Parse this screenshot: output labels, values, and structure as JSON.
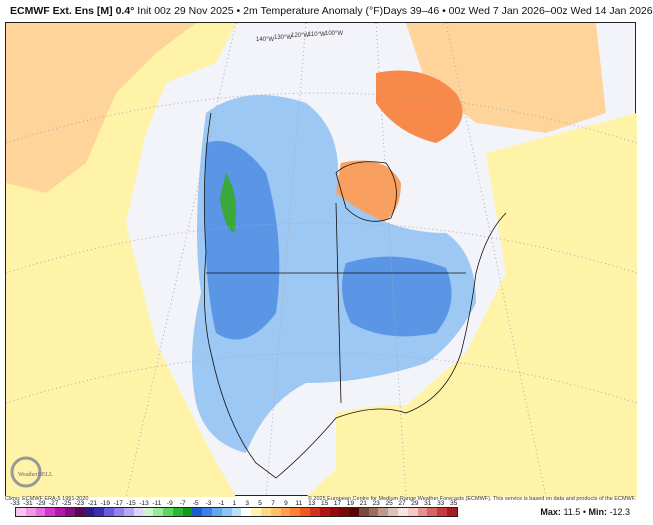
{
  "header": {
    "model": "ECMWF Ext. Ens [M] 0.4°",
    "init": "Init 00z 29 Nov 2025",
    "field": "2m Temperature Anomaly (°F)",
    "period": "Days 39–46 • 00z Wed 7 Jan 2026–00z Wed 14 Jan 2026"
  },
  "map": {
    "meridian_labels": [
      "140°W",
      "130°W",
      "120°W",
      "110°W",
      "100°W"
    ]
  },
  "logo": "WeatherBELL",
  "credits": {
    "climo": "Climo: ECMWF ERA-5 1991-2020",
    "copyright": "© 2025 European Centre for Medium-Range Weather Forecasts (ECMWF). This service is based on data and products of the ECMWF."
  },
  "colorbar": {
    "ticks": [
      "-33",
      "-31",
      "-29",
      "-27",
      "-25",
      "-23",
      "-21",
      "-19",
      "-17",
      "-15",
      "-13",
      "-11",
      "-9",
      "-7",
      "-5",
      "-3",
      "-1",
      "1",
      "3",
      "5",
      "7",
      "9",
      "11",
      "13",
      "15",
      "17",
      "19",
      "21",
      "23",
      "25",
      "27",
      "29",
      "31",
      "33",
      "35"
    ],
    "colors": [
      "#f7c6f2",
      "#f09ae6",
      "#e66ddd",
      "#d633cf",
      "#b01aa8",
      "#851080",
      "#5a0a55",
      "#2c1c8c",
      "#3a2fb0",
      "#6a5cd8",
      "#8f82e8",
      "#b4aaf2",
      "#dcd6f8",
      "#cdf4cd",
      "#9ae89a",
      "#5cd65c",
      "#2fb82f",
      "#14961e",
      "#1e5ccf",
      "#3c82e6",
      "#64a5f0",
      "#8cc3f5",
      "#b8def9",
      "#ffffff",
      "#fff4b0",
      "#ffd98a",
      "#ffbe6a",
      "#ffa050",
      "#ff8232",
      "#f05a1e",
      "#d2321e",
      "#b41414",
      "#960a0a",
      "#780a0a",
      "#5a0505",
      "#7a4a3a",
      "#9a6e5a",
      "#c09a88",
      "#dcc3b8",
      "#f5e4e0",
      "#f5c8c8",
      "#e89090",
      "#d86464",
      "#c83c3c",
      "#a81e1e"
    ]
  },
  "stats": {
    "max_label": "Max:",
    "max": "11.5",
    "min_label": "Min:",
    "min": "-12.3"
  }
}
